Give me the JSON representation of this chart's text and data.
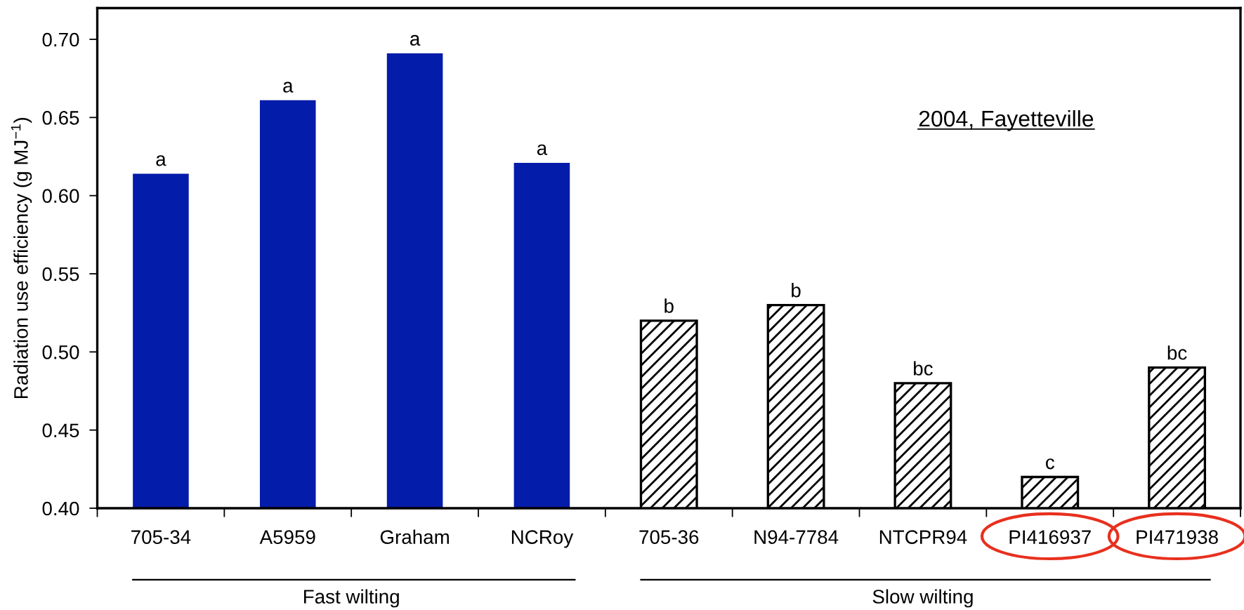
{
  "chart_data": {
    "type": "bar",
    "categories": [
      "705-34",
      "A5959",
      "Graham",
      "NCRoy",
      "705-36",
      "N94-7784",
      "NTCPR94",
      "PI416937",
      "PI471938"
    ],
    "series": [
      {
        "name": "Fast wilting",
        "color": "#031caa",
        "values": [
          0.614,
          0.661,
          0.691,
          0.621,
          null,
          null,
          null,
          null,
          null
        ]
      },
      {
        "name": "Slow wilting",
        "color": "#000000",
        "values": [
          null,
          null,
          null,
          null,
          0.52,
          0.53,
          0.48,
          0.42,
          0.49
        ]
      }
    ],
    "ylabel": "Radiation use efficiency (g MJ$^{−1}$)",
    "ylim": [
      0.4,
      0.72
    ],
    "yticks": [
      {
        "value": 0.4,
        "label": "0.40"
      },
      {
        "value": 0.45,
        "label": "0.45"
      },
      {
        "value": 0.5,
        "label": "0.50"
      },
      {
        "value": 0.55,
        "label": "0.55"
      },
      {
        "value": 0.6,
        "label": "0.60"
      },
      {
        "value": 0.65,
        "label": "0.65"
      },
      {
        "value": 0.7,
        "label": "0.70"
      }
    ],
    "annotations": [
      "2004, Fayetteville",
      {
        "text": "a",
        "x": "705-34",
        "y": 0.614
      },
      {
        "text": "a",
        "x": "A5959",
        "y": 0.661
      },
      {
        "text": "a",
        "x": "Graham",
        "y": 0.691
      },
      {
        "text": "a",
        "x": "NCRoy",
        "y": 0.621
      },
      {
        "text": "b",
        "x": "705-36",
        "y": 0.52
      },
      {
        "text": "b",
        "x": "N94-7784",
        "y": 0.53
      },
      {
        "text": "bc",
        "x": "NTCPR94",
        "y": 0.48
      },
      {
        "text": "c",
        "x": "PI416937",
        "y": 0.42
      },
      {
        "text": "bc",
        "x": "PI471938",
        "y": 0.49
      }
    ]
  }
}
